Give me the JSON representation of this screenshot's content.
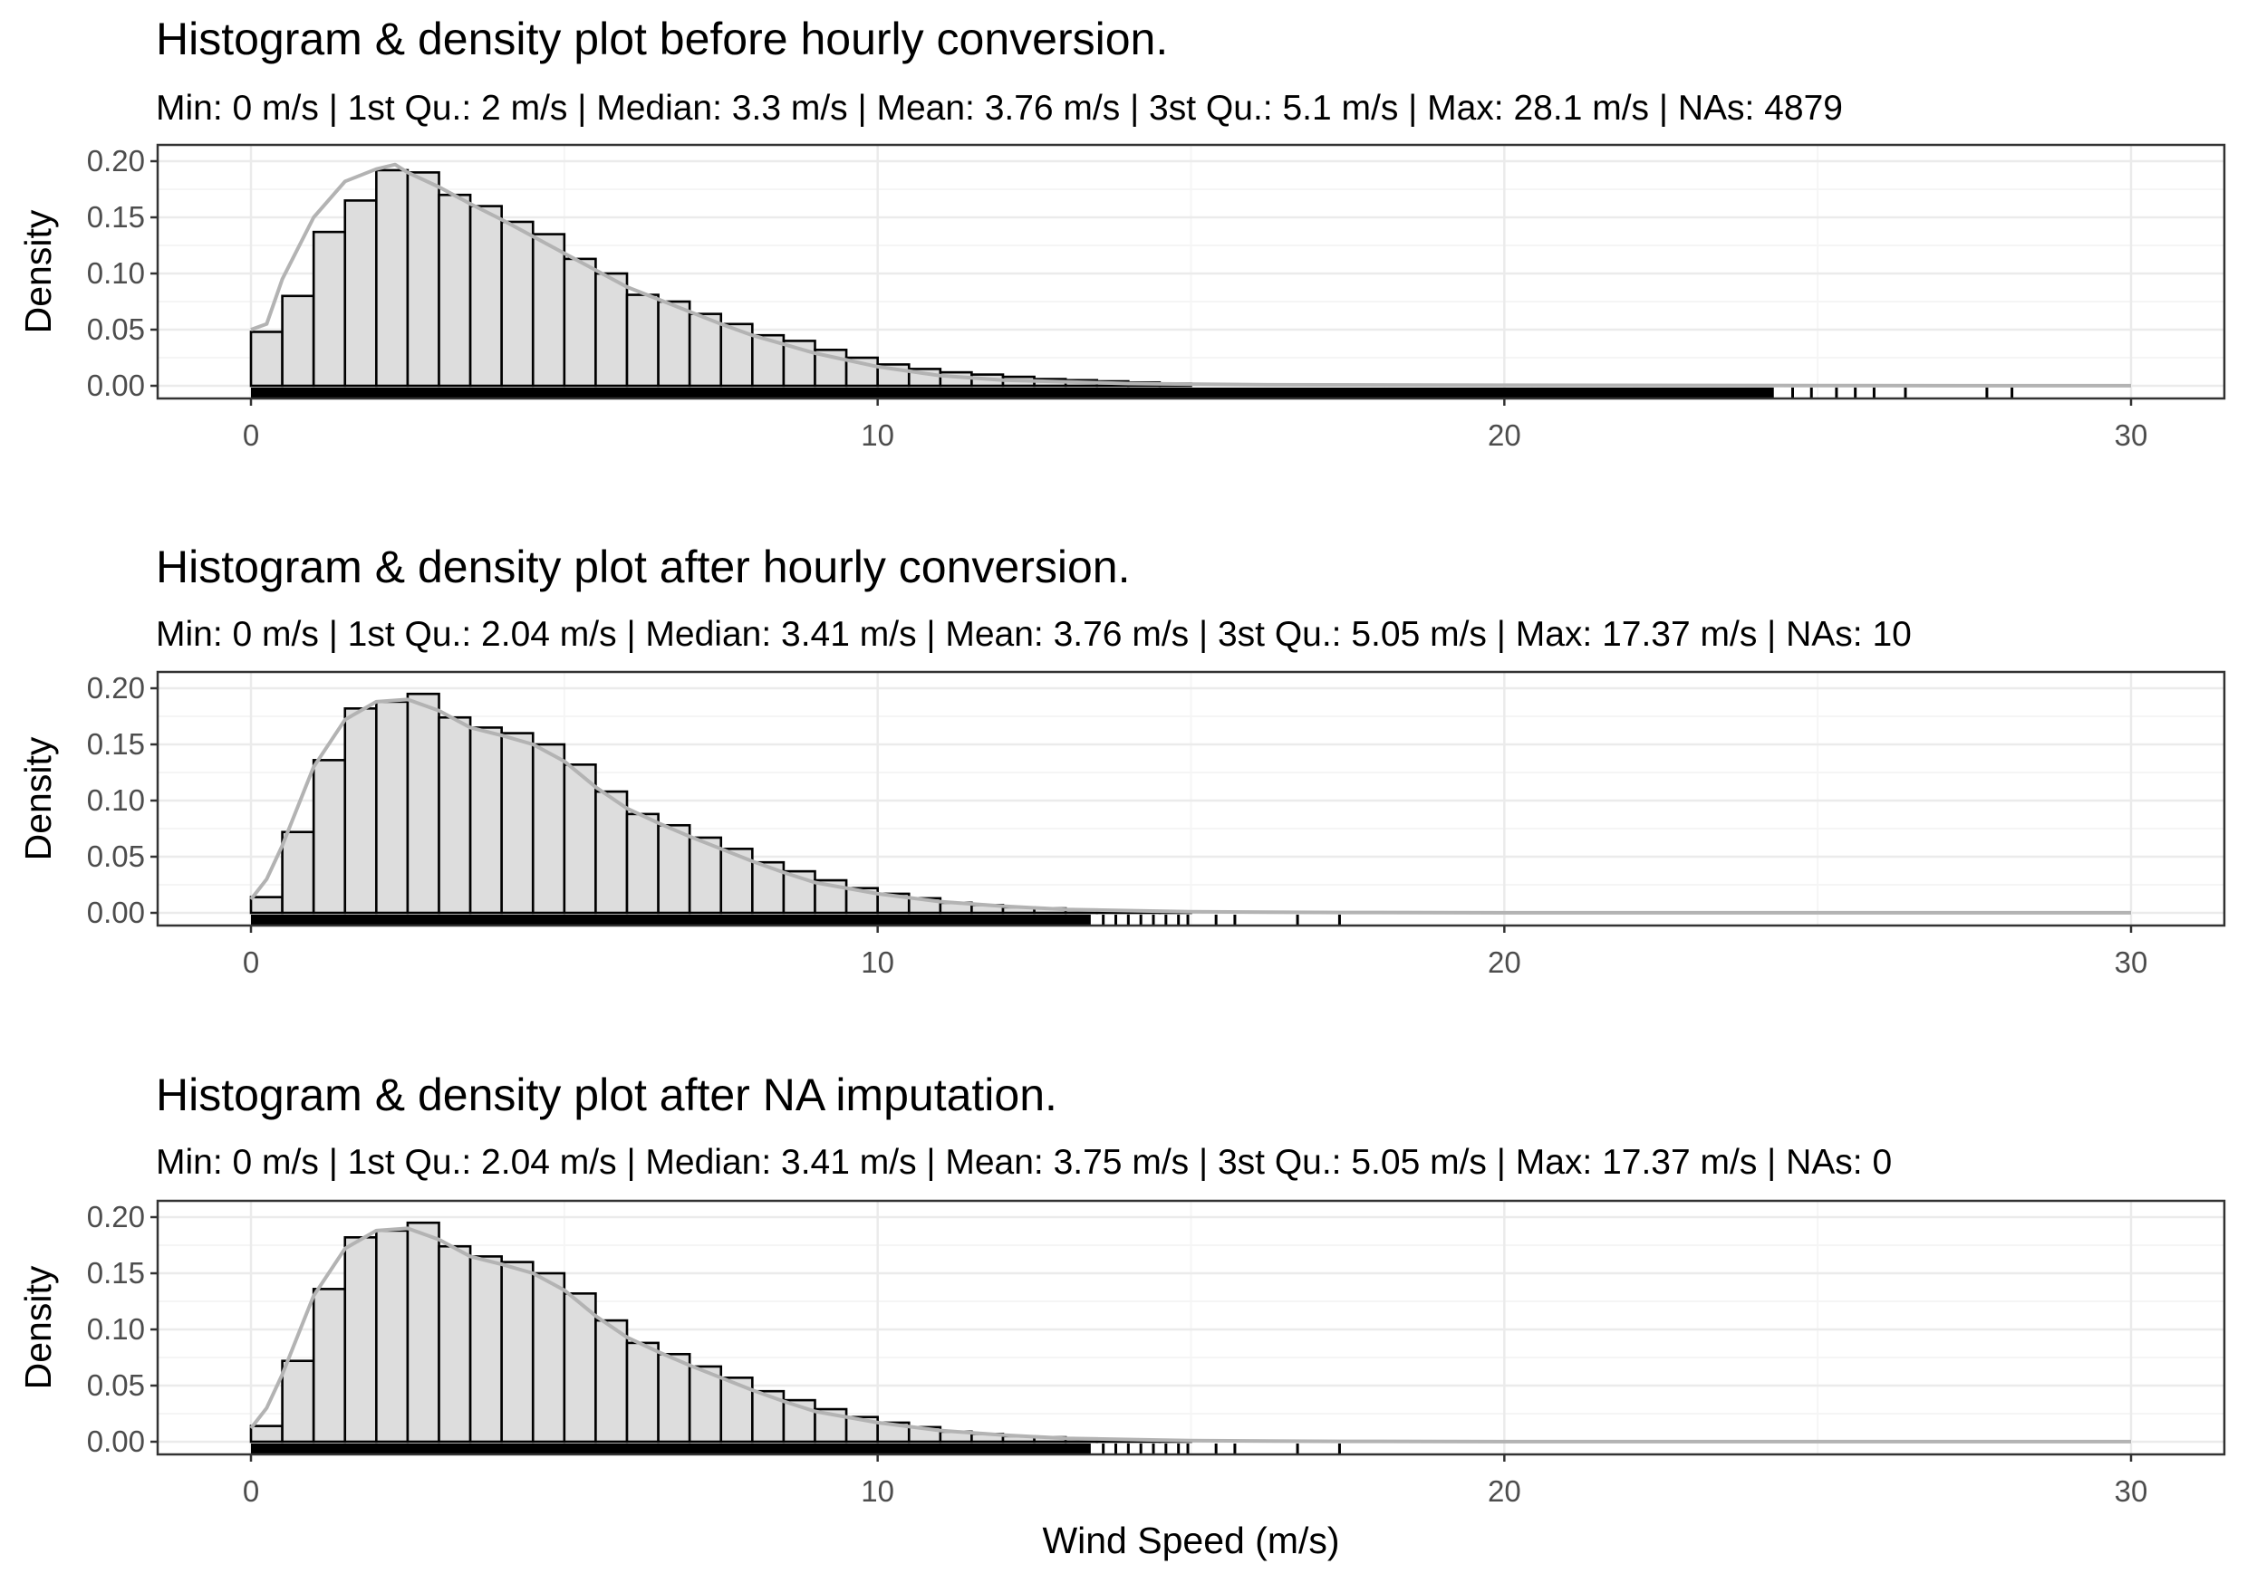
{
  "chart_data": [
    {
      "type": "histogram",
      "title": "Histogram & density plot before hourly conversion.",
      "subtitle": "Min: 0 m/s | 1st Qu.: 2 m/s | Median: 3.3 m/s | Mean: 3.76 m/s | 3st Qu.: 5.1 m/s | Max: 28.1 m/s | NAs: 4879",
      "ylabel": "Density",
      "xlabel": "",
      "xlim": [
        0,
        30
      ],
      "ylim": [
        0,
        0.2
      ],
      "x_ticks": [
        0,
        10,
        20,
        30
      ],
      "y_ticks": [
        0.0,
        0.05,
        0.1,
        0.15,
        0.2
      ],
      "y_tick_labels": [
        "0.00",
        "0.05",
        "0.10",
        "0.15",
        "0.20"
      ],
      "grid": true,
      "bin_width": 0.5,
      "bins_start": 0,
      "bin_values": [
        0.048,
        0.08,
        0.137,
        0.165,
        0.192,
        0.19,
        0.17,
        0.16,
        0.146,
        0.135,
        0.113,
        0.1,
        0.081,
        0.075,
        0.064,
        0.055,
        0.045,
        0.04,
        0.032,
        0.025,
        0.019,
        0.015,
        0.012,
        0.01,
        0.008,
        0.006,
        0.005,
        0.004,
        0.003,
        0.002
      ],
      "density_x": [
        0,
        0.25,
        0.5,
        1,
        1.5,
        2,
        2.3,
        2.5,
        3,
        3.5,
        4,
        4.5,
        5,
        5.5,
        6,
        6.5,
        7,
        7.5,
        8,
        8.5,
        9,
        10,
        11,
        12,
        14,
        16,
        20,
        25,
        30
      ],
      "density_y": [
        0.05,
        0.055,
        0.095,
        0.15,
        0.182,
        0.193,
        0.197,
        0.19,
        0.177,
        0.162,
        0.148,
        0.133,
        0.118,
        0.103,
        0.088,
        0.077,
        0.066,
        0.055,
        0.045,
        0.037,
        0.029,
        0.017,
        0.009,
        0.005,
        0.002,
        0.001,
        0.0005,
        0.0002,
        0.0001
      ],
      "rug_min": 0,
      "rug_dense_max": 24.3,
      "rug_sparse": [
        24.6,
        24.9,
        25.3,
        25.6,
        25.9,
        26.4,
        27.7,
        28.1
      ]
    },
    {
      "type": "histogram",
      "title": "Histogram & density plot after hourly conversion.",
      "subtitle": "Min: 0 m/s | 1st Qu.: 2.04 m/s | Median: 3.41 m/s | Mean: 3.76 m/s | 3st Qu.: 5.05 m/s | Max: 17.37 m/s | NAs: 10",
      "ylabel": "Density",
      "xlabel": "",
      "xlim": [
        0,
        30
      ],
      "ylim": [
        0,
        0.2
      ],
      "x_ticks": [
        0,
        10,
        20,
        30
      ],
      "y_ticks": [
        0.0,
        0.05,
        0.1,
        0.15,
        0.2
      ],
      "y_tick_labels": [
        "0.00",
        "0.05",
        "0.10",
        "0.15",
        "0.20"
      ],
      "grid": true,
      "bin_width": 0.5,
      "bins_start": 0,
      "bin_values": [
        0.014,
        0.072,
        0.136,
        0.182,
        0.188,
        0.195,
        0.174,
        0.165,
        0.16,
        0.15,
        0.132,
        0.108,
        0.088,
        0.078,
        0.067,
        0.057,
        0.045,
        0.037,
        0.029,
        0.022,
        0.017,
        0.013,
        0.009,
        0.007,
        0.005,
        0.004,
        0.003,
        0.002,
        0.001,
        0.001
      ],
      "density_x": [
        0,
        0.25,
        0.5,
        1,
        1.5,
        2,
        2.5,
        3,
        3.5,
        4,
        4.5,
        5,
        5.5,
        6,
        6.5,
        7,
        7.5,
        8,
        8.5,
        9,
        10,
        11,
        12,
        13,
        15,
        17.4,
        20,
        25,
        30
      ],
      "density_y": [
        0.012,
        0.03,
        0.06,
        0.13,
        0.172,
        0.188,
        0.19,
        0.18,
        0.165,
        0.158,
        0.15,
        0.135,
        0.112,
        0.093,
        0.08,
        0.068,
        0.057,
        0.046,
        0.036,
        0.027,
        0.017,
        0.01,
        0.006,
        0.003,
        0.001,
        0.0003,
        0.0001,
        0.0001,
        0.0001
      ],
      "rug_min": 0,
      "rug_dense_max": 13.4,
      "rug_sparse": [
        13.6,
        13.8,
        14.0,
        14.2,
        14.4,
        14.6,
        14.8,
        14.95,
        15.4,
        15.7,
        16.7,
        17.37
      ]
    },
    {
      "type": "histogram",
      "title": "Histogram & density plot after NA imputation.",
      "subtitle": "Min: 0 m/s | 1st Qu.: 2.04 m/s | Median: 3.41 m/s | Mean: 3.75 m/s | 3st Qu.: 5.05 m/s | Max: 17.37 m/s | NAs: 0",
      "ylabel": "Density",
      "xlabel": "Wind Speed (m/s)",
      "xlim": [
        0,
        30
      ],
      "ylim": [
        0,
        0.2
      ],
      "x_ticks": [
        0,
        10,
        20,
        30
      ],
      "y_ticks": [
        0.0,
        0.05,
        0.1,
        0.15,
        0.2
      ],
      "y_tick_labels": [
        "0.00",
        "0.05",
        "0.10",
        "0.15",
        "0.20"
      ],
      "grid": true,
      "bin_width": 0.5,
      "bins_start": 0,
      "bin_values": [
        0.014,
        0.072,
        0.136,
        0.182,
        0.188,
        0.195,
        0.174,
        0.165,
        0.16,
        0.15,
        0.132,
        0.108,
        0.088,
        0.078,
        0.067,
        0.057,
        0.045,
        0.037,
        0.029,
        0.022,
        0.017,
        0.013,
        0.009,
        0.007,
        0.005,
        0.004,
        0.003,
        0.002,
        0.001,
        0.001
      ],
      "density_x": [
        0,
        0.25,
        0.5,
        1,
        1.5,
        2,
        2.5,
        3,
        3.5,
        4,
        4.5,
        5,
        5.5,
        6,
        6.5,
        7,
        7.5,
        8,
        8.5,
        9,
        10,
        11,
        12,
        13,
        15,
        17.4,
        20,
        25,
        30
      ],
      "density_y": [
        0.012,
        0.03,
        0.06,
        0.13,
        0.172,
        0.188,
        0.19,
        0.18,
        0.165,
        0.158,
        0.15,
        0.135,
        0.112,
        0.093,
        0.08,
        0.068,
        0.057,
        0.046,
        0.036,
        0.027,
        0.017,
        0.01,
        0.006,
        0.003,
        0.001,
        0.0003,
        0.0001,
        0.0001,
        0.0001
      ],
      "rug_min": 0,
      "rug_dense_max": 13.4,
      "rug_sparse": [
        13.6,
        13.8,
        14.0,
        14.2,
        14.4,
        14.6,
        14.8,
        14.95,
        15.4,
        15.7,
        16.7,
        17.37
      ]
    }
  ],
  "colors": {
    "bar_fill": "#dddddd",
    "bar_outline": "#000000",
    "density_line": "#b3b3b3",
    "grid_major": "#ebebeb",
    "grid_minor": "#f5f5f5",
    "panel_border": "#333333",
    "tick_text": "#4d4d4d"
  }
}
